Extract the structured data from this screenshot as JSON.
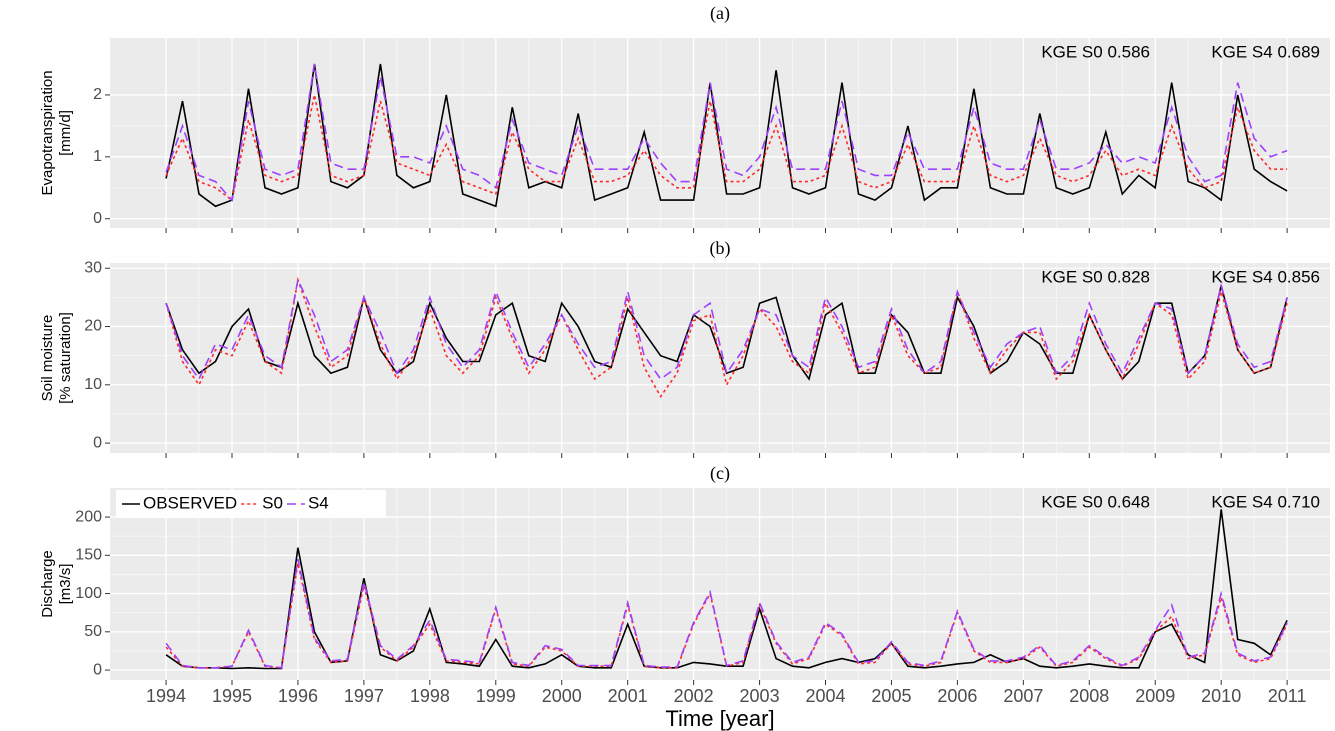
{
  "chart_data": [
    {
      "type": "line",
      "title": "(a)",
      "ylabel": [
        "Evapotranspiration",
        "[mm/d]"
      ],
      "annotations": [
        "KGE S0  0.586",
        "KGE S4  0.689"
      ],
      "x": [
        1994,
        1994.25,
        1994.5,
        1994.75,
        1995,
        1995.25,
        1995.5,
        1995.75,
        1996,
        1996.25,
        1996.5,
        1996.75,
        1997,
        1997.25,
        1997.5,
        1997.75,
        1998,
        1998.25,
        1998.5,
        1998.75,
        1999,
        1999.25,
        1999.5,
        1999.75,
        2000,
        2000.25,
        2000.5,
        2000.75,
        2001,
        2001.25,
        2001.5,
        2001.75,
        2002,
        2002.25,
        2002.5,
        2002.75,
        2003,
        2003.25,
        2003.5,
        2003.75,
        2004,
        2004.25,
        2004.5,
        2004.75,
        2005,
        2005.25,
        2005.5,
        2005.75,
        2006,
        2006.25,
        2006.5,
        2006.75,
        2007,
        2007.25,
        2007.5,
        2007.75,
        2008,
        2008.25,
        2008.5,
        2008.75,
        2009,
        2009.25,
        2009.5,
        2009.75,
        2010,
        2010.25,
        2010.5,
        2010.75,
        2011
      ],
      "xlim": [
        1993.15,
        2011.65
      ],
      "xticks": [
        1994,
        1995,
        1996,
        1997,
        1998,
        1999,
        2000,
        2001,
        2002,
        2003,
        2004,
        2005,
        2006,
        2007,
        2008,
        2009,
        2010,
        2011
      ],
      "ylim": [
        -0.15,
        2.92
      ],
      "yticks": [
        0,
        1,
        2
      ],
      "grid": true,
      "series": [
        {
          "color": "#000000",
          "dash": "none",
          "values": [
            0.65,
            1.9,
            0.4,
            0.2,
            0.3,
            2.1,
            0.5,
            0.4,
            0.5,
            2.5,
            0.6,
            0.5,
            0.7,
            2.5,
            0.7,
            0.5,
            0.6,
            2.0,
            0.4,
            0.3,
            0.2,
            1.8,
            0.5,
            0.6,
            0.5,
            1.7,
            0.3,
            0.4,
            0.5,
            1.4,
            0.3,
            0.3,
            0.3,
            2.2,
            0.4,
            0.4,
            0.5,
            2.4,
            0.5,
            0.4,
            0.5,
            2.2,
            0.4,
            0.3,
            0.5,
            1.5,
            0.3,
            0.5,
            0.5,
            2.1,
            0.5,
            0.4,
            0.4,
            1.7,
            0.5,
            0.4,
            0.5,
            1.4,
            0.4,
            0.7,
            0.5,
            2.2,
            0.6,
            0.5,
            0.3,
            2.0,
            0.8,
            0.6,
            0.45
          ]
        },
        {
          "color": "#ff2a2a",
          "dash": "3 3",
          "values": [
            0.7,
            1.3,
            0.6,
            0.5,
            0.3,
            1.6,
            0.7,
            0.6,
            0.7,
            2.0,
            0.7,
            0.6,
            0.7,
            1.9,
            0.9,
            0.8,
            0.7,
            1.2,
            0.6,
            0.5,
            0.4,
            1.4,
            0.8,
            0.6,
            0.6,
            1.3,
            0.6,
            0.6,
            0.7,
            1.1,
            0.7,
            0.5,
            0.5,
            1.9,
            0.6,
            0.6,
            0.8,
            1.5,
            0.6,
            0.6,
            0.7,
            1.5,
            0.6,
            0.5,
            0.6,
            1.2,
            0.6,
            0.6,
            0.6,
            1.5,
            0.7,
            0.6,
            0.7,
            1.3,
            0.7,
            0.6,
            0.7,
            1.1,
            0.7,
            0.8,
            0.7,
            1.5,
            0.8,
            0.5,
            0.6,
            1.8,
            1.1,
            0.8,
            0.8
          ]
        },
        {
          "color": "#a040ff",
          "dash": "9 5",
          "values": [
            0.75,
            1.5,
            0.7,
            0.6,
            0.3,
            1.9,
            0.8,
            0.7,
            0.8,
            2.5,
            0.9,
            0.8,
            0.8,
            2.3,
            1.0,
            1.0,
            0.9,
            1.5,
            0.8,
            0.7,
            0.5,
            1.6,
            0.9,
            0.8,
            0.7,
            1.5,
            0.8,
            0.8,
            0.8,
            1.3,
            0.9,
            0.6,
            0.6,
            2.2,
            0.8,
            0.7,
            1.0,
            1.8,
            0.8,
            0.8,
            0.8,
            1.9,
            0.8,
            0.7,
            0.7,
            1.4,
            0.8,
            0.8,
            0.8,
            1.8,
            0.9,
            0.8,
            0.8,
            1.6,
            0.8,
            0.8,
            0.9,
            1.2,
            0.9,
            1.0,
            0.9,
            1.8,
            1.0,
            0.6,
            0.7,
            2.2,
            1.3,
            1.0,
            1.1
          ]
        }
      ]
    },
    {
      "type": "line",
      "title": "(b)",
      "ylabel": [
        "Soil moisture",
        "[% saturation]"
      ],
      "annotations": [
        "KGE S0  0.828",
        "KGE S4  0.856"
      ],
      "x": [
        1994,
        1994.25,
        1994.5,
        1994.75,
        1995,
        1995.25,
        1995.5,
        1995.75,
        1996,
        1996.25,
        1996.5,
        1996.75,
        1997,
        1997.25,
        1997.5,
        1997.75,
        1998,
        1998.25,
        1998.5,
        1998.75,
        1999,
        1999.25,
        1999.5,
        1999.75,
        2000,
        2000.25,
        2000.5,
        2000.75,
        2001,
        2001.25,
        2001.5,
        2001.75,
        2002,
        2002.25,
        2002.5,
        2002.75,
        2003,
        2003.25,
        2003.5,
        2003.75,
        2004,
        2004.25,
        2004.5,
        2004.75,
        2005,
        2005.25,
        2005.5,
        2005.75,
        2006,
        2006.25,
        2006.5,
        2006.75,
        2007,
        2007.25,
        2007.5,
        2007.75,
        2008,
        2008.25,
        2008.5,
        2008.75,
        2009,
        2009.25,
        2009.5,
        2009.75,
        2010,
        2010.25,
        2010.5,
        2010.75,
        2011
      ],
      "xlim": [
        1993.15,
        2011.65
      ],
      "xticks": [
        1994,
        1995,
        1996,
        1997,
        1998,
        1999,
        2000,
        2001,
        2002,
        2003,
        2004,
        2005,
        2006,
        2007,
        2008,
        2009,
        2010,
        2011
      ],
      "ylim": [
        -1.7,
        30.9
      ],
      "yticks": [
        0,
        10,
        20,
        30
      ],
      "grid": true,
      "series": [
        {
          "color": "#000000",
          "dash": "none",
          "values": [
            24,
            16,
            12,
            14,
            20,
            23,
            14,
            13,
            24,
            15,
            12,
            13,
            25,
            16,
            12,
            14,
            24,
            18,
            14,
            14,
            22,
            24,
            15,
            14,
            24,
            20,
            14,
            13,
            23,
            19,
            15,
            14,
            22,
            20,
            12,
            13,
            24,
            25,
            15,
            11,
            22,
            24,
            12,
            12,
            22,
            19,
            12,
            12,
            25,
            20,
            12,
            14,
            19,
            17,
            12,
            12,
            22,
            16,
            11,
            14,
            24,
            24,
            12,
            15,
            27,
            16,
            12,
            13,
            25
          ]
        },
        {
          "color": "#ff2a2a",
          "dash": "3 3",
          "values": [
            24,
            14,
            10,
            16,
            15,
            21,
            14,
            12,
            28,
            20,
            13,
            15,
            25,
            17,
            11,
            15,
            23,
            15,
            12,
            15,
            25,
            18,
            12,
            16,
            22,
            16,
            11,
            13,
            25,
            13,
            8,
            12,
            21,
            22,
            10,
            15,
            23,
            20,
            14,
            12,
            24,
            19,
            12,
            13,
            22,
            15,
            12,
            13,
            26,
            18,
            12,
            16,
            19,
            19,
            11,
            14,
            22,
            16,
            11,
            17,
            24,
            22,
            11,
            14,
            26,
            16,
            12,
            13,
            24
          ]
        },
        {
          "color": "#a040ff",
          "dash": "9 5",
          "values": [
            24,
            15,
            11,
            17,
            16,
            22,
            15,
            13,
            28,
            22,
            14,
            16,
            25,
            19,
            12,
            16,
            25,
            17,
            13,
            16,
            26,
            19,
            13,
            17,
            22,
            17,
            13,
            14,
            26,
            15,
            11,
            13,
            22,
            24,
            12,
            16,
            23,
            22,
            15,
            13,
            25,
            20,
            13,
            14,
            23,
            16,
            12,
            14,
            26,
            19,
            13,
            17,
            19,
            20,
            12,
            15,
            24,
            17,
            12,
            18,
            24,
            23,
            12,
            15,
            27,
            17,
            13,
            14,
            25
          ]
        }
      ]
    },
    {
      "type": "line",
      "title": "(c)",
      "ylabel": [
        "Discharge",
        "[m3/s]"
      ],
      "xlabel": "Time [year]",
      "annotations": [
        "KGE S0  0.648",
        "KGE S4  0.710"
      ],
      "legend": "top-left",
      "x": [
        1994,
        1994.25,
        1994.5,
        1994.75,
        1995,
        1995.25,
        1995.5,
        1995.75,
        1996,
        1996.25,
        1996.5,
        1996.75,
        1997,
        1997.25,
        1997.5,
        1997.75,
        1998,
        1998.25,
        1998.5,
        1998.75,
        1999,
        1999.25,
        1999.5,
        1999.75,
        2000,
        2000.25,
        2000.5,
        2000.75,
        2001,
        2001.25,
        2001.5,
        2001.75,
        2002,
        2002.25,
        2002.5,
        2002.75,
        2003,
        2003.25,
        2003.5,
        2003.75,
        2004,
        2004.25,
        2004.5,
        2004.75,
        2005,
        2005.25,
        2005.5,
        2005.75,
        2006,
        2006.25,
        2006.5,
        2006.75,
        2007,
        2007.25,
        2007.5,
        2007.75,
        2008,
        2008.25,
        2008.5,
        2008.75,
        2009,
        2009.25,
        2009.5,
        2009.75,
        2010,
        2010.25,
        2010.5,
        2010.75,
        2011
      ],
      "xlim": [
        1993.15,
        2011.65
      ],
      "xticks": [
        1994,
        1995,
        1996,
        1997,
        1998,
        1999,
        2000,
        2001,
        2002,
        2003,
        2004,
        2005,
        2006,
        2007,
        2008,
        2009,
        2010,
        2011
      ],
      "ylim": [
        -13,
        238
      ],
      "yticks": [
        0,
        50,
        100,
        150,
        200
      ],
      "grid": true,
      "series": [
        {
          "name": "OBSERVED",
          "color": "#000000",
          "dash": "none",
          "values": [
            20,
            5,
            3,
            3,
            2,
            3,
            2,
            2,
            160,
            50,
            10,
            12,
            120,
            20,
            12,
            25,
            80,
            10,
            8,
            5,
            40,
            5,
            3,
            8,
            20,
            5,
            3,
            3,
            60,
            5,
            3,
            3,
            10,
            8,
            5,
            5,
            80,
            15,
            5,
            3,
            10,
            15,
            10,
            15,
            35,
            5,
            3,
            5,
            8,
            10,
            20,
            10,
            15,
            5,
            3,
            5,
            8,
            5,
            3,
            3,
            50,
            60,
            20,
            10,
            210,
            40,
            35,
            20,
            65
          ]
        },
        {
          "name": "S0",
          "color": "#ff2a2a",
          "dash": "3 3",
          "values": [
            30,
            5,
            3,
            3,
            5,
            50,
            5,
            3,
            140,
            40,
            10,
            12,
            110,
            30,
            12,
            30,
            60,
            12,
            10,
            8,
            80,
            8,
            5,
            30,
            25,
            5,
            5,
            5,
            85,
            5,
            3,
            3,
            60,
            100,
            5,
            10,
            85,
            35,
            8,
            15,
            60,
            45,
            8,
            10,
            35,
            8,
            5,
            10,
            75,
            25,
            10,
            10,
            15,
            30,
            5,
            10,
            30,
            15,
            5,
            15,
            50,
            70,
            15,
            20,
            95,
            20,
            10,
            15,
            60
          ]
        },
        {
          "name": "S4",
          "color": "#a040ff",
          "dash": "9 5",
          "values": [
            35,
            6,
            3,
            3,
            5,
            52,
            6,
            3,
            145,
            42,
            12,
            14,
            115,
            32,
            14,
            32,
            65,
            14,
            12,
            10,
            82,
            10,
            6,
            32,
            27,
            6,
            6,
            6,
            88,
            6,
            4,
            4,
            62,
            102,
            6,
            12,
            88,
            37,
            10,
            17,
            62,
            47,
            10,
            12,
            37,
            10,
            6,
            12,
            77,
            27,
            12,
            12,
            17,
            32,
            6,
            12,
            32,
            17,
            6,
            17,
            52,
            85,
            17,
            22,
            100,
            22,
            12,
            17,
            62
          ]
        }
      ]
    }
  ]
}
